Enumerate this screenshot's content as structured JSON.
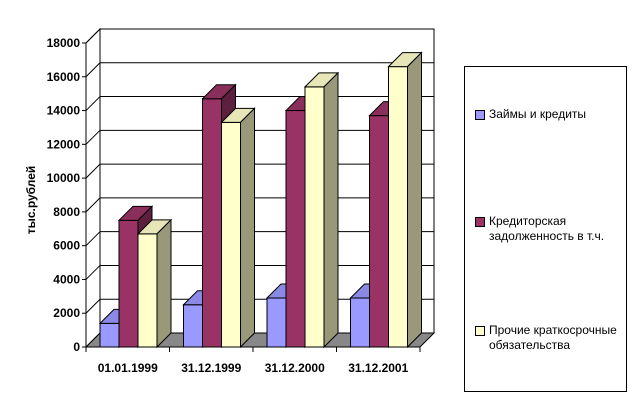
{
  "chart_data": {
    "type": "bar",
    "categories": [
      "01.01.1999",
      "31.12.1999",
      "31.12.2000",
      "31.12.2001"
    ],
    "series": [
      {
        "name": "Займы и кредиты",
        "values": [
          1400,
          2500,
          2900,
          2900
        ],
        "color": "#9999ff"
      },
      {
        "name": "Кредиторская задолженность в т.ч.",
        "values": [
          7500,
          14700,
          14000,
          13700
        ],
        "color": "#993366"
      },
      {
        "name": "Прочие краткосрочные обязательства",
        "values": [
          6700,
          13300,
          15400,
          16600
        ],
        "color": "#ffffcc"
      }
    ],
    "ylabel": "тыс.рублей",
    "ylim": [
      0,
      18000
    ],
    "yticks": [
      0,
      2000,
      4000,
      6000,
      8000,
      10000,
      12000,
      14000,
      16000,
      18000
    ],
    "grid": true,
    "style": "3d-clustered",
    "legend_position": "right"
  }
}
